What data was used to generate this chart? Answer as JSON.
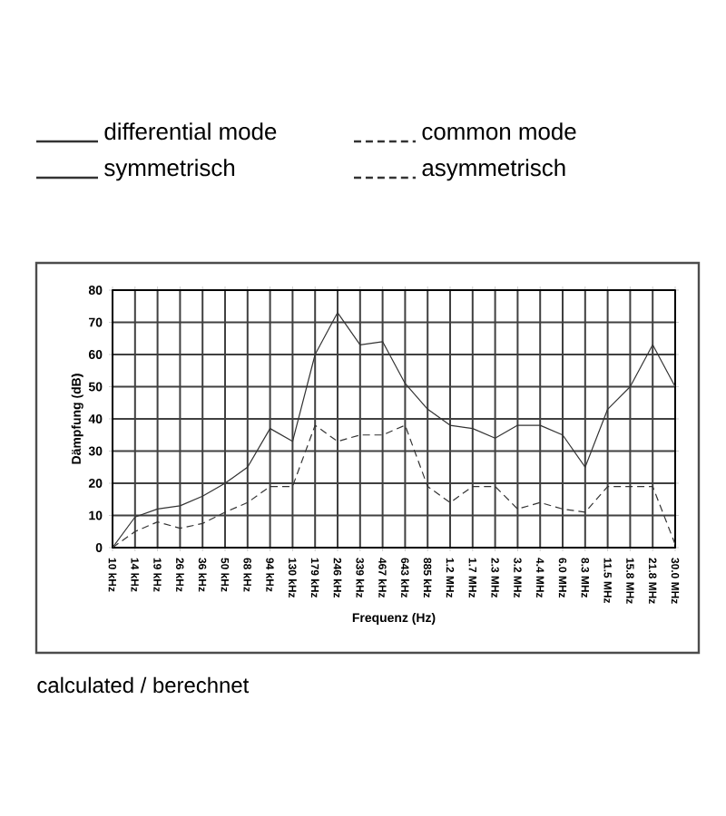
{
  "chart_data": {
    "type": "line",
    "xlabel": "Frequenz (Hz)",
    "ylabel": "Dämpfung (dB)",
    "categories": [
      "10 kHz",
      "14 kHz",
      "19 kHz",
      "26 kHz",
      "36 kHz",
      "50 kHz",
      "68 kHz",
      "94 kHz",
      "130 kHz",
      "179 kHz",
      "246 kHz",
      "339 kHz",
      "467 kHz",
      "643 kHz",
      "885 kHz",
      "1.2 MHz",
      "1.7 MHz",
      "2.3 MHz",
      "3.2 MHz",
      "4.4 MHz",
      "6.0 MHz",
      "8.3 MHz",
      "11.5 MHz",
      "15.8 MHz",
      "21.8 MHz",
      "30.0 MHz"
    ],
    "series": [
      {
        "name": "differential mode",
        "color": "#333333",
        "line_style": "solid",
        "values": [
          0,
          9.5,
          12,
          13,
          16,
          20,
          25,
          37,
          33,
          60,
          73,
          63,
          64,
          51,
          43,
          38,
          37,
          34,
          38,
          38,
          35,
          25,
          43,
          50,
          63,
          50
        ]
      },
      {
        "name": "common mode",
        "color": "#333333",
        "line_style": "dashed",
        "values": [
          0,
          5,
          8,
          6,
          7.5,
          11,
          14,
          19,
          19,
          38,
          33,
          35,
          35,
          38,
          19,
          14,
          19,
          19,
          12,
          14,
          12,
          11,
          19,
          19,
          19,
          1
        ]
      }
    ],
    "ylim": [
      0,
      80
    ],
    "yticks": [
      0,
      10,
      20,
      30,
      40,
      50,
      60,
      70,
      80
    ],
    "grid": true,
    "legend": "top",
    "marker": "none",
    "annotations": [
      "symmetrisch",
      "asymmetrisch",
      "calculated / berechnet"
    ]
  }
}
